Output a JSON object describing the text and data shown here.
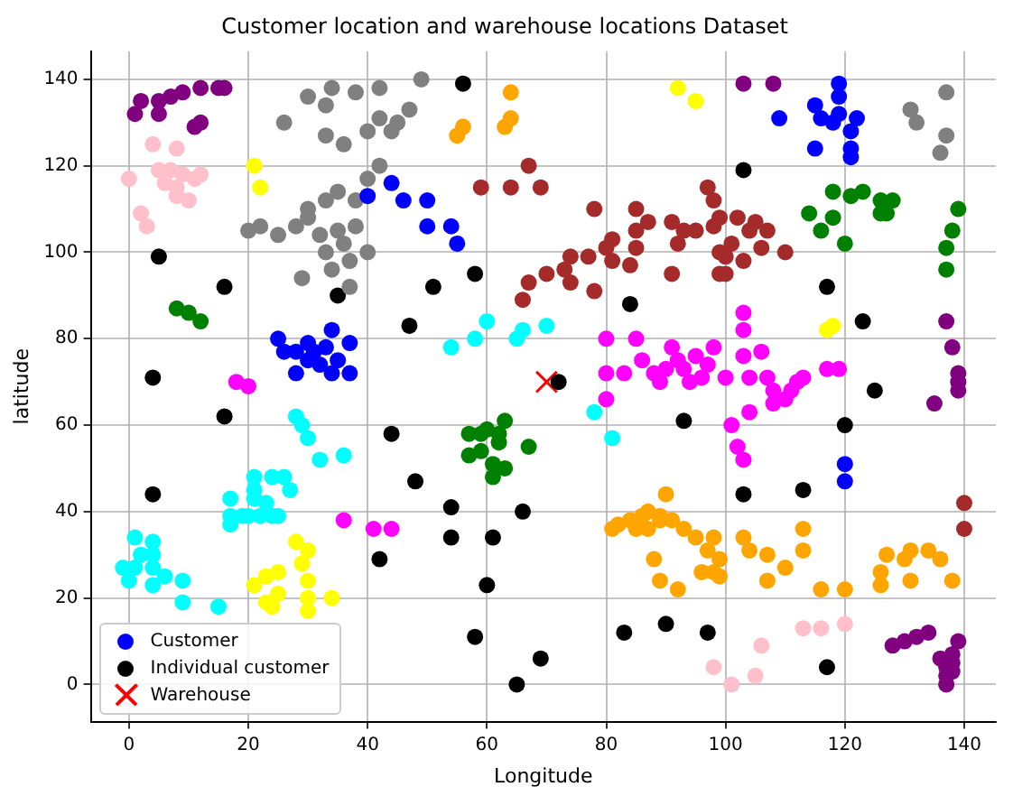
{
  "chart_data": {
    "type": "scatter",
    "title": "Customer location and warehouse locations Dataset",
    "xlabel": "Longitude",
    "ylabel": "latitude",
    "xlim": [
      -6.4,
      145.3
    ],
    "ylim": [
      -8.6,
      146.5
    ],
    "xticks": [
      0,
      20,
      40,
      60,
      80,
      100,
      120,
      140
    ],
    "yticks": [
      0,
      20,
      40,
      60,
      80,
      100,
      120,
      140
    ],
    "grid": true,
    "legend": "bottom left",
    "marker": "circle",
    "series": [
      {
        "name": "Customer",
        "color": "#0000ff",
        "x": [
          1,
          2,
          5,
          5,
          7,
          9,
          11,
          12,
          12,
          15,
          16,
          103,
          108,
          128,
          130,
          132,
          134,
          139,
          136,
          137,
          138,
          137,
          138,
          137,
          138,
          137,
          138,
          139,
          139,
          135,
          139,
          0,
          2,
          3,
          4,
          5,
          6,
          7,
          8,
          8,
          8,
          9,
          10,
          11,
          12,
          98,
          101,
          105,
          106,
          113,
          116,
          120,
          20,
          22,
          25,
          28,
          30,
          32,
          33,
          35,
          36,
          37,
          38,
          40,
          34,
          37,
          29,
          30,
          33,
          35,
          38,
          40,
          42,
          44,
          45,
          47,
          49,
          42,
          38,
          33,
          30,
          26,
          36,
          40,
          42,
          33,
          34,
          131,
          132,
          137,
          137,
          136,
          21,
          22,
          92,
          95,
          117,
          118,
          28,
          30,
          29,
          30,
          30,
          30,
          34,
          21,
          25,
          24,
          25,
          23,
          23,
          25,
          28,
          30,
          31,
          33,
          34,
          35,
          37,
          28,
          34,
          37,
          32,
          26,
          30,
          40,
          44,
          46,
          50,
          50,
          54,
          55,
          119,
          119,
          119,
          115,
          116,
          118,
          121,
          122,
          109,
          115,
          121,
          121,
          120,
          120,
          8,
          10,
          12,
          57,
          60,
          63,
          62,
          59,
          57,
          61,
          63,
          61,
          67,
          59,
          62,
          118,
          121,
          123,
          126,
          126,
          128,
          127,
          114,
          118,
          116,
          120,
          139,
          138,
          137,
          137,
          67,
          69,
          64,
          59,
          78,
          85,
          85,
          87,
          91,
          93,
          92,
          85,
          81,
          80,
          77,
          74,
          73,
          74,
          67,
          70,
          66,
          78,
          81,
          84,
          91,
          97,
          98,
          99,
          98,
          102,
          104,
          105,
          107,
          106,
          110,
          99,
          101,
          100,
          103,
          95,
          99,
          100,
          140,
          140,
          18,
          20,
          36,
          41,
          44,
          80,
          80,
          80,
          83,
          85,
          86,
          88,
          89,
          90,
          91,
          92,
          93,
          94,
          95,
          96,
          97,
          98,
          100,
          103,
          103,
          103,
          104,
          101,
          102,
          103,
          104,
          106,
          107,
          108,
          110,
          111,
          112,
          113,
          117,
          119,
          108,
          28,
          29,
          30,
          32,
          36,
          26,
          27,
          21,
          24,
          21,
          21,
          17,
          17,
          19,
          20,
          22,
          24,
          23,
          25,
          17,
          1,
          1,
          2,
          4,
          4,
          4,
          6,
          4,
          9,
          -1,
          0,
          9,
          15,
          54,
          58,
          60,
          65,
          66,
          70,
          78,
          81,
          56,
          55,
          64,
          64,
          63,
          90,
          81,
          82,
          84,
          86,
          87,
          89,
          89,
          87,
          91,
          85,
          88,
          89,
          92,
          93,
          95,
          97,
          98,
          99,
          98,
          96,
          99,
          103,
          104,
          107,
          110,
          107,
          113,
          113,
          116,
          120,
          126,
          126,
          127,
          131,
          134,
          136,
          138,
          130,
          131
        ],
        "values": [
          132,
          135,
          135,
          132,
          136,
          137,
          129,
          130,
          138,
          138,
          138,
          139,
          139,
          9,
          10,
          11,
          12,
          10,
          6,
          4,
          5,
          2,
          3,
          0,
          7,
          84,
          78,
          72,
          70,
          65,
          68,
          117,
          109,
          106,
          125,
          119,
          116,
          119,
          124,
          115,
          113,
          118,
          112,
          117,
          118,
          4,
          0,
          2,
          9,
          13,
          13,
          14,
          105,
          106,
          104,
          106,
          108,
          104,
          100,
          105,
          102,
          98,
          106,
          100,
          96,
          92,
          94,
          110,
          112,
          114,
          112,
          117,
          120,
          128,
          130,
          133,
          140,
          138,
          137,
          134,
          136,
          130,
          125,
          128,
          131,
          127,
          138,
          133,
          130,
          137,
          127,
          123,
          120,
          115,
          138,
          135,
          82,
          83,
          33,
          31,
          28,
          24,
          20,
          17,
          20,
          23,
          21,
          18,
          26,
          25,
          19,
          80,
          77,
          75,
          77,
          78,
          82,
          75,
          79,
          72,
          72,
          72,
          74,
          77,
          79,
          113,
          116,
          112,
          112,
          106,
          106,
          102,
          139,
          136,
          132,
          134,
          131,
          130,
          128,
          131,
          131,
          124,
          124,
          122,
          51,
          47,
          87,
          86,
          84,
          58,
          59,
          61,
          56,
          54,
          53,
          51,
          50,
          48,
          55,
          58,
          58,
          114,
          113,
          114,
          112,
          109,
          112,
          109,
          109,
          108,
          105,
          102,
          110,
          105,
          101,
          96,
          120,
          115,
          115,
          115,
          110,
          110,
          105,
          107,
          107,
          105,
          102,
          101,
          103,
          101,
          99,
          99,
          96,
          93,
          93,
          95,
          89,
          91,
          98,
          97,
          95,
          115,
          112,
          108,
          106,
          108,
          105,
          107,
          105,
          101,
          100,
          100,
          102,
          99,
          98,
          105,
          95,
          95,
          42,
          36,
          70,
          69,
          38,
          36,
          36,
          80,
          72,
          66,
          72,
          80,
          75,
          72,
          70,
          73,
          78,
          75,
          73,
          70,
          76,
          71,
          74,
          78,
          71,
          86,
          82,
          76,
          71,
          60,
          55,
          52,
          63,
          77,
          71,
          68,
          66,
          68,
          70,
          71,
          73,
          73,
          65,
          62,
          60,
          57,
          52,
          53,
          48,
          45,
          48,
          48,
          45,
          43,
          43,
          39,
          39,
          39,
          39,
          39,
          42,
          39,
          37,
          34,
          27,
          30,
          30,
          27,
          23,
          25,
          33,
          24,
          27,
          24,
          19,
          18,
          78,
          80,
          84,
          80,
          82,
          83,
          63,
          57,
          129,
          127,
          137,
          131,
          129,
          44,
          36,
          37,
          38,
          39,
          40,
          39,
          38,
          36,
          38,
          36,
          29,
          24,
          22,
          36,
          34,
          31,
          34,
          29,
          26,
          26,
          25,
          34,
          31,
          30,
          27,
          24,
          36,
          31,
          22,
          22,
          23,
          26,
          30,
          31,
          31,
          29,
          24,
          29,
          24
        ],
        "colors": [
          "#800080",
          "#800080",
          "#800080",
          "#800080",
          "#800080",
          "#800080",
          "#800080",
          "#800080",
          "#800080",
          "#800080",
          "#800080",
          "#800080",
          "#800080",
          "#800080",
          "#800080",
          "#800080",
          "#800080",
          "#800080",
          "#800080",
          "#800080",
          "#800080",
          "#800080",
          "#800080",
          "#800080",
          "#800080",
          "#800080",
          "#800080",
          "#800080",
          "#800080",
          "#800080",
          "#800080",
          "#ffc0cb",
          "#ffc0cb",
          "#ffc0cb",
          "#ffc0cb",
          "#ffc0cb",
          "#ffc0cb",
          "#ffc0cb",
          "#ffc0cb",
          "#ffc0cb",
          "#ffc0cb",
          "#ffc0cb",
          "#ffc0cb",
          "#ffc0cb",
          "#ffc0cb",
          "#ffc0cb",
          "#ffc0cb",
          "#ffc0cb",
          "#ffc0cb",
          "#ffc0cb",
          "#ffc0cb",
          "#ffc0cb",
          "#808080",
          "#808080",
          "#808080",
          "#808080",
          "#808080",
          "#808080",
          "#808080",
          "#808080",
          "#808080",
          "#808080",
          "#808080",
          "#808080",
          "#808080",
          "#808080",
          "#808080",
          "#808080",
          "#808080",
          "#808080",
          "#808080",
          "#808080",
          "#808080",
          "#808080",
          "#808080",
          "#808080",
          "#808080",
          "#808080",
          "#808080",
          "#808080",
          "#808080",
          "#808080",
          "#808080",
          "#808080",
          "#808080",
          "#808080",
          "#808080",
          "#808080",
          "#808080",
          "#808080",
          "#808080",
          "#808080",
          "#ffff00",
          "#ffff00",
          "#ffff00",
          "#ffff00",
          "#ffff00",
          "#ffff00",
          "#ffff00",
          "#ffff00",
          "#ffff00",
          "#ffff00",
          "#ffff00",
          "#ffff00",
          "#ffff00",
          "#ffff00",
          "#ffff00",
          "#ffff00",
          "#ffff00",
          "#ffff00",
          "#ffff00",
          "#0000ff",
          "#0000ff",
          "#0000ff",
          "#0000ff",
          "#0000ff",
          "#0000ff",
          "#0000ff",
          "#0000ff",
          "#0000ff",
          "#0000ff",
          "#0000ff",
          "#0000ff",
          "#0000ff",
          "#0000ff",
          "#0000ff",
          "#0000ff",
          "#0000ff",
          "#0000ff",
          "#0000ff",
          "#0000ff",
          "#0000ff",
          "#0000ff",
          "#0000ff",
          "#0000ff",
          "#0000ff",
          "#0000ff",
          "#0000ff",
          "#0000ff",
          "#0000ff",
          "#0000ff",
          "#0000ff",
          "#0000ff",
          "#0000ff",
          "#0000ff",
          "#0000ff",
          "#008000",
          "#008000",
          "#008000",
          "#008000",
          "#008000",
          "#008000",
          "#008000",
          "#008000",
          "#008000",
          "#008000",
          "#008000",
          "#008000",
          "#008000",
          "#008000",
          "#008000",
          "#008000",
          "#008000",
          "#008000",
          "#008000",
          "#008000",
          "#008000",
          "#008000",
          "#008000",
          "#008000",
          "#008000",
          "#008000",
          "#008000",
          "#008000",
          "#008000",
          "#008000",
          "#a52a2a",
          "#a52a2a",
          "#a52a2a",
          "#a52a2a",
          "#a52a2a",
          "#a52a2a",
          "#a52a2a",
          "#a52a2a",
          "#a52a2a",
          "#a52a2a",
          "#a52a2a",
          "#a52a2a",
          "#a52a2a",
          "#a52a2a",
          "#a52a2a",
          "#a52a2a",
          "#a52a2a",
          "#a52a2a",
          "#a52a2a",
          "#a52a2a",
          "#a52a2a",
          "#a52a2a",
          "#a52a2a",
          "#a52a2a",
          "#a52a2a",
          "#a52a2a",
          "#a52a2a",
          "#a52a2a",
          "#a52a2a",
          "#a52a2a",
          "#a52a2a",
          "#a52a2a",
          "#a52a2a",
          "#a52a2a",
          "#a52a2a",
          "#a52a2a",
          "#a52a2a",
          "#a52a2a",
          "#a52a2a",
          "#a52a2a",
          "#a52a2a",
          "#a52a2a",
          "#a52a2a",
          "#a52a2a",
          "#ff00ff",
          "#ff00ff",
          "#ff00ff",
          "#ff00ff",
          "#ff00ff",
          "#ff00ff",
          "#ff00ff",
          "#ff00ff",
          "#ff00ff",
          "#ff00ff",
          "#ff00ff",
          "#ff00ff",
          "#ff00ff",
          "#ff00ff",
          "#ff00ff",
          "#ff00ff",
          "#ff00ff",
          "#ff00ff",
          "#ff00ff",
          "#ff00ff",
          "#ff00ff",
          "#ff00ff",
          "#ff00ff",
          "#ff00ff",
          "#ff00ff",
          "#ff00ff",
          "#ff00ff",
          "#ff00ff",
          "#ff00ff",
          "#ff00ff",
          "#ff00ff",
          "#ff00ff",
          "#ff00ff",
          "#ff00ff",
          "#ff00ff",
          "#ff00ff",
          "#ff00ff",
          "#ff00ff",
          "#ff00ff",
          "#ff00ff",
          "#ff00ff",
          "#00ffff",
          "#00ffff",
          "#00ffff",
          "#00ffff",
          "#00ffff",
          "#00ffff",
          "#00ffff",
          "#00ffff",
          "#00ffff",
          "#00ffff",
          "#00ffff",
          "#00ffff",
          "#00ffff",
          "#00ffff",
          "#00ffff",
          "#00ffff",
          "#00ffff",
          "#00ffff",
          "#00ffff",
          "#00ffff",
          "#00ffff",
          "#00ffff",
          "#00ffff",
          "#00ffff",
          "#00ffff",
          "#00ffff",
          "#00ffff",
          "#00ffff",
          "#00ffff",
          "#00ffff",
          "#00ffff",
          "#00ffff",
          "#00ffff",
          "#00ffff",
          "#00ffff",
          "#00ffff",
          "#00ffff",
          "#00ffff",
          "#00ffff",
          "#00ffff",
          "#00ffff",
          "#ffa500",
          "#ffa500",
          "#ffa500",
          "#ffa500",
          "#ffa500",
          "#ffa500",
          "#ffa500",
          "#ffa500",
          "#ffa500",
          "#ffa500",
          "#ffa500",
          "#ffa500",
          "#ffa500",
          "#ffa500",
          "#ffa500",
          "#ffa500",
          "#ffa500",
          "#ffa500",
          "#ffa500",
          "#ffa500",
          "#ffa500",
          "#ffa500",
          "#ffa500",
          "#ffa500",
          "#ffa500",
          "#ffa500",
          "#ffa500",
          "#ffa500",
          "#ffa500",
          "#ffa500",
          "#ffa500",
          "#ffa500",
          "#ffa500",
          "#ffa500",
          "#ffa500",
          "#ffa500",
          "#ffa500",
          "#ffa500",
          "#ffa500",
          "#ffa500",
          "#ffa500",
          "#ffa500",
          "#ffa500",
          "#ffa500",
          "#ffa500"
        ]
      },
      {
        "name": "Individual customer",
        "color": "#000000",
        "x": [
          5,
          16,
          35,
          4,
          56,
          58,
          51,
          47,
          84,
          72,
          103,
          117,
          123,
          125,
          16,
          4,
          44,
          42,
          48,
          54,
          54,
          61,
          60,
          58,
          69,
          65,
          66,
          83,
          90,
          93,
          120,
          103,
          113,
          97,
          117
        ],
        "values": [
          99,
          92,
          90,
          71,
          139,
          95,
          92,
          83,
          88,
          70,
          119,
          92,
          84,
          68,
          62,
          44,
          58,
          29,
          47,
          41,
          34,
          34,
          23,
          11,
          6,
          0,
          40,
          12,
          14,
          61,
          60,
          44,
          45,
          12,
          4
        ]
      },
      {
        "name": "Warehouse",
        "color": "#ff0000",
        "marker": "cross",
        "x": [
          70
        ],
        "values": [
          70
        ]
      }
    ]
  }
}
